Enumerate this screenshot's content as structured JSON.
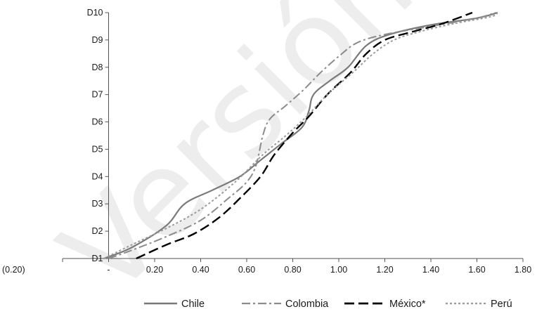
{
  "watermark": "Versión",
  "chart_data": {
    "type": "line",
    "title": "",
    "xlabel": "",
    "ylabel": "",
    "xlim": [
      -0.2,
      1.8
    ],
    "ylim": [
      1,
      10
    ],
    "x_ticks": [
      -0.2,
      0,
      0.2,
      0.4,
      0.6,
      0.8,
      1.0,
      1.2,
      1.4,
      1.6,
      1.8
    ],
    "x_tick_labels": [
      "(0.20)",
      "-",
      "0.20",
      "0.40",
      "0.60",
      "0.80",
      "1.00",
      "1.20",
      "1.40",
      "1.60",
      "1.80"
    ],
    "y_ticks": [
      1,
      2,
      3,
      4,
      5,
      6,
      7,
      8,
      9,
      10
    ],
    "y_tick_labels": [
      "D1",
      "D2",
      "D3",
      "D4",
      "D5",
      "D6",
      "D7",
      "D8",
      "D9",
      "D10"
    ],
    "grid": false,
    "legend_position": "bottom",
    "series": [
      {
        "name": "Chile",
        "color": "#7a7a7a",
        "dash": "solid",
        "points": [
          [
            -0.02,
            1.0
          ],
          [
            0.1,
            1.4
          ],
          [
            0.25,
            2.2
          ],
          [
            0.33,
            3.0
          ],
          [
            0.45,
            3.5
          ],
          [
            0.57,
            4.0
          ],
          [
            0.66,
            4.6
          ],
          [
            0.75,
            5.2
          ],
          [
            0.84,
            5.8
          ],
          [
            0.87,
            6.4
          ],
          [
            0.89,
            7.0
          ],
          [
            0.96,
            7.5
          ],
          [
            1.04,
            8.0
          ],
          [
            1.12,
            8.8
          ],
          [
            1.22,
            9.2
          ],
          [
            1.4,
            9.55
          ],
          [
            1.6,
            9.8
          ],
          [
            1.69,
            10.0
          ]
        ]
      },
      {
        "name": "Colombia",
        "color": "#8c8c8c",
        "dash": "longdashdot",
        "points": [
          [
            0.0,
            1.0
          ],
          [
            0.1,
            1.3
          ],
          [
            0.25,
            1.8
          ],
          [
            0.4,
            2.4
          ],
          [
            0.52,
            3.2
          ],
          [
            0.6,
            3.8
          ],
          [
            0.64,
            4.4
          ],
          [
            0.67,
            5.5
          ],
          [
            0.7,
            6.1
          ],
          [
            0.77,
            6.6
          ],
          [
            0.85,
            7.2
          ],
          [
            0.92,
            7.8
          ],
          [
            1.0,
            8.4
          ],
          [
            1.08,
            8.9
          ],
          [
            1.2,
            9.2
          ],
          [
            1.4,
            9.5
          ],
          [
            1.6,
            9.8
          ],
          [
            1.68,
            10.0
          ]
        ]
      },
      {
        "name": "México*",
        "color": "#000000",
        "dash": "longdash",
        "points": [
          [
            0.12,
            1.0
          ],
          [
            0.25,
            1.5
          ],
          [
            0.37,
            1.9
          ],
          [
            0.48,
            2.5
          ],
          [
            0.57,
            3.2
          ],
          [
            0.66,
            4.0
          ],
          [
            0.72,
            4.8
          ],
          [
            0.8,
            5.6
          ],
          [
            0.87,
            6.2
          ],
          [
            0.95,
            7.0
          ],
          [
            1.05,
            7.8
          ],
          [
            1.12,
            8.5
          ],
          [
            1.2,
            9.0
          ],
          [
            1.32,
            9.3
          ],
          [
            1.45,
            9.6
          ],
          [
            1.58,
            10.0
          ]
        ]
      },
      {
        "name": "Perú",
        "color": "#9a9a9a",
        "dash": "dotted",
        "points": [
          [
            -0.02,
            1.0
          ],
          [
            0.1,
            1.5
          ],
          [
            0.25,
            2.1
          ],
          [
            0.4,
            2.8
          ],
          [
            0.55,
            3.8
          ],
          [
            0.67,
            4.8
          ],
          [
            0.77,
            5.5
          ],
          [
            0.86,
            6.2
          ],
          [
            0.95,
            7.0
          ],
          [
            1.06,
            7.8
          ],
          [
            1.15,
            8.5
          ],
          [
            1.24,
            9.0
          ],
          [
            1.35,
            9.3
          ],
          [
            1.5,
            9.6
          ],
          [
            1.66,
            9.85
          ],
          [
            1.69,
            10.0
          ]
        ]
      }
    ]
  }
}
